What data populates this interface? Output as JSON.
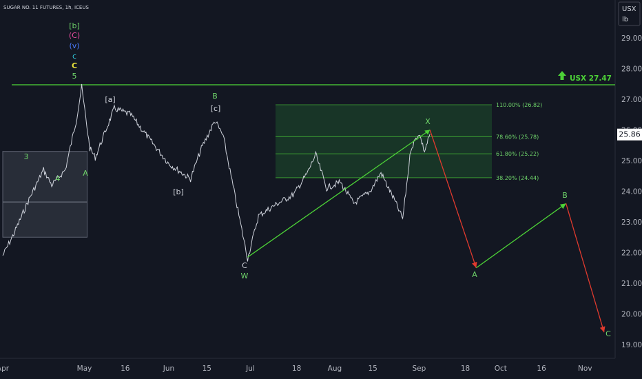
{
  "symbol_title": "SUGAR NO. 11 FUTURES, 1h, ICEUS",
  "currency": "USX",
  "unit": "lb",
  "current_price": "25.86",
  "resistance_label": "USX 27.47",
  "colors": {
    "background": "#131722",
    "price": "#cfd3dc",
    "green": "#4cd137",
    "label_green": "#6fd46a",
    "red": "#e03a2e",
    "box_fill": "#1f5c2e",
    "grey_box": "#3a3f4b"
  },
  "icons": {
    "target_arrow": "up-arrow-icon"
  },
  "wave_labels": {
    "b_bracket": "[b]",
    "c_paren": "(C)",
    "v_paren": "(v)",
    "c_small": "c",
    "c_yellow": "C",
    "five": "5",
    "three": "3",
    "four": "4",
    "a_may": "A",
    "a_bracket": "[a]",
    "b_bracket_june": "[b]",
    "b_big": "B",
    "c_bracket": "[c]",
    "c_july": "C",
    "w_july": "W",
    "x_sep": "X",
    "a_proj": "A",
    "b_proj": "B",
    "c_proj": "C"
  },
  "chart_data": {
    "type": "line",
    "title": "SUGAR NO. 11 FUTURES, 1h, ICEUS",
    "ylabel": "USX lb",
    "ylim": [
      18.6,
      30.0
    ],
    "y_ticks": [
      "29.00",
      "28.00",
      "27.00",
      "26.00",
      "25.00",
      "24.00",
      "23.00",
      "22.00",
      "21.00",
      "20.00",
      "19.00"
    ],
    "x_ticks": [
      "Apr",
      "May",
      "16",
      "Jun",
      "15",
      "Jul",
      "18",
      "Aug",
      "15",
      "Sep",
      "18",
      "Oct",
      "16",
      "Nov"
    ],
    "series": [
      {
        "values": [
          {
            "x": "Apr 01",
            "y": 21.9
          },
          {
            "x": "Apr 05",
            "y": 22.6
          },
          {
            "x": "Apr 11",
            "y": 23.8
          },
          {
            "x": "Apr 16",
            "y": 24.7
          },
          {
            "x": "Apr 19",
            "y": 24.2
          },
          {
            "x": "Apr 24",
            "y": 24.7
          },
          {
            "x": "Apr 28",
            "y": 26.3
          },
          {
            "x": "Apr 30",
            "y": 27.4
          },
          {
            "x": "May 03",
            "y": 25.4
          },
          {
            "x": "May 05",
            "y": 25.1
          },
          {
            "x": "May 12",
            "y": 26.7
          },
          {
            "x": "May 18",
            "y": 26.5
          },
          {
            "x": "May 24",
            "y": 25.8
          },
          {
            "x": "Jun 01",
            "y": 24.9
          },
          {
            "x": "Jun 09",
            "y": 24.4
          },
          {
            "x": "Jun 13",
            "y": 25.4
          },
          {
            "x": "Jun 18",
            "y": 26.3
          },
          {
            "x": "Jun 21",
            "y": 25.8
          },
          {
            "x": "Jun 25",
            "y": 24.0
          },
          {
            "x": "Jun 30",
            "y": 21.8
          },
          {
            "x": "Jul 04",
            "y": 23.2
          },
          {
            "x": "Jul 11",
            "y": 23.6
          },
          {
            "x": "Jul 17",
            "y": 23.9
          },
          {
            "x": "Jul 22",
            "y": 24.6
          },
          {
            "x": "Jul 25",
            "y": 25.2
          },
          {
            "x": "Jul 29",
            "y": 24.1
          },
          {
            "x": "Aug 03",
            "y": 24.3
          },
          {
            "x": "Aug 08",
            "y": 23.6
          },
          {
            "x": "Aug 14",
            "y": 24.0
          },
          {
            "x": "Aug 18",
            "y": 24.6
          },
          {
            "x": "Aug 23",
            "y": 23.7
          },
          {
            "x": "Aug 26",
            "y": 23.1
          },
          {
            "x": "Aug 29",
            "y": 25.4
          },
          {
            "x": "Sep 01",
            "y": 25.9
          },
          {
            "x": "Sep 03",
            "y": 25.3
          },
          {
            "x": "Sep 05",
            "y": 25.86
          }
        ]
      },
      {
        "name": "projection",
        "values": [
          {
            "x": "Sep 05",
            "y": 26.0
          },
          {
            "x": "Sep 22",
            "y": 21.5
          },
          {
            "x": "Oct 25",
            "y": 23.6
          },
          {
            "x": "Nov 08",
            "y": 19.4
          }
        ]
      }
    ],
    "horizontal_lines": [
      {
        "y": 27.47,
        "label": "USX 27.47"
      }
    ],
    "fibonacci": [
      {
        "level": "110.00%",
        "value": 26.82
      },
      {
        "level": "78.60%",
        "value": 25.78
      },
      {
        "level": "61.80%",
        "value": 25.22
      },
      {
        "level": "38.20%",
        "value": 24.44
      }
    ],
    "boxes": [
      {
        "x_start": "Apr 01",
        "x_end": "May 02",
        "y_low": 22.5,
        "y_high": 25.3,
        "mid": 23.65
      }
    ],
    "grid": false,
    "legend": "none"
  }
}
